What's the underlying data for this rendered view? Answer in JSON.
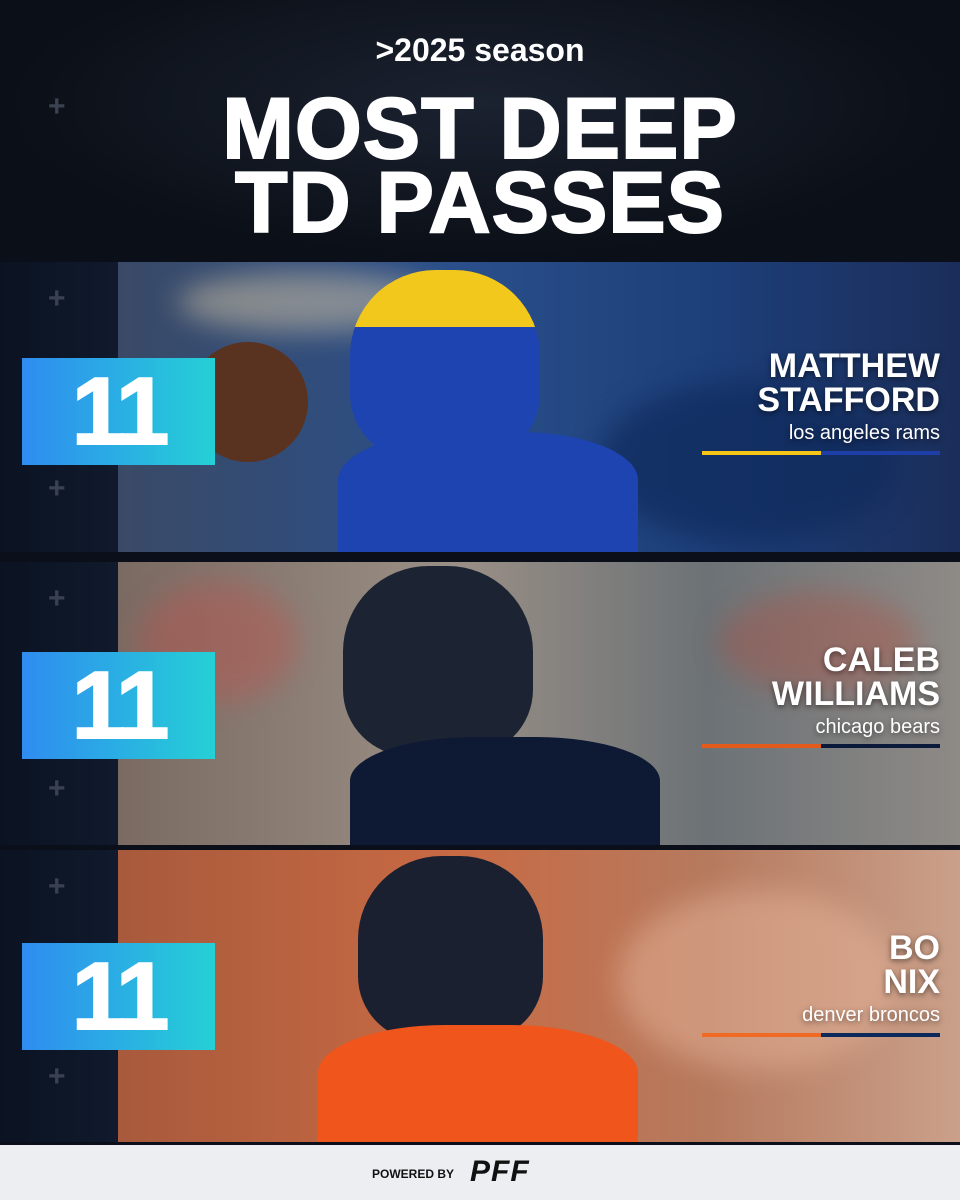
{
  "header": {
    "subtitle": ">2025 season",
    "title_lines": [
      "MOST DEEP",
      "TD PASSES"
    ]
  },
  "players": [
    {
      "value": "11",
      "first_name": "MATTHEW",
      "last_name": "STAFFORD",
      "team": "los angeles rams"
    },
    {
      "value": "11",
      "first_name": "CALEB",
      "last_name": "WILLIAMS",
      "team": "chicago bears"
    },
    {
      "value": "11",
      "first_name": "BO",
      "last_name": "NIX",
      "team": "denver broncos"
    }
  ],
  "footer": {
    "powered_by": "POWERED BY",
    "brand": "PFF"
  }
}
